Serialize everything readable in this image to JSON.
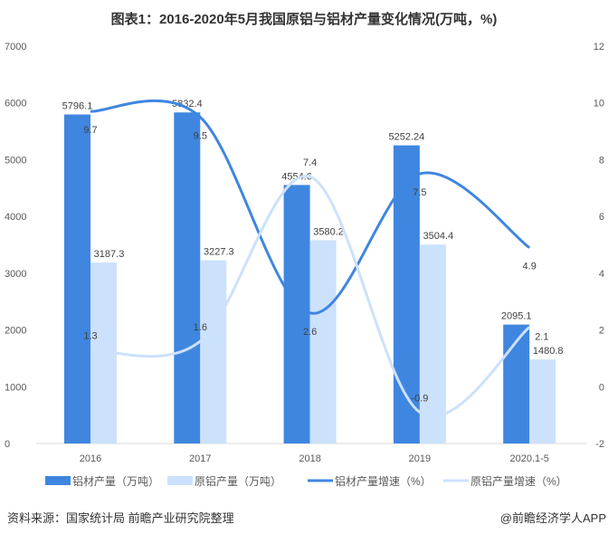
{
  "title": "图表1：2016-2020年5月我国原铝与铝材产量变化情况(万吨，%)",
  "source": "资料来源：国家统计局 前瞻产业研究院整理",
  "credit": "@前瞻经济学人APP",
  "chart_data": {
    "type": "bar+line",
    "categories": [
      "2016",
      "2017",
      "2018",
      "2019",
      "2020.1-5"
    ],
    "y_left": {
      "ylim": [
        0,
        7000
      ],
      "ticks": [
        0,
        1000,
        2000,
        3000,
        4000,
        5000,
        6000,
        7000
      ]
    },
    "y_right": {
      "ylim": [
        -2,
        12
      ],
      "ticks": [
        -2,
        0,
        2,
        4,
        6,
        8,
        10,
        12
      ]
    },
    "grid": false,
    "legend_position": "bottom",
    "series": [
      {
        "name": "铝材产量（万吨）",
        "type": "bar",
        "axis": "left",
        "color": "#3f86e0",
        "values": [
          5796.1,
          5832.4,
          4554.6,
          5252.24,
          2095.1
        ],
        "labels": [
          "5796.1",
          "5832.4",
          "4554.6",
          "5252.24",
          "2095.1"
        ]
      },
      {
        "name": "原铝产量（万吨）",
        "type": "bar",
        "axis": "left",
        "color": "#cce1fb",
        "values": [
          3187.3,
          3227.3,
          3580.2,
          3504.4,
          1480.8
        ],
        "labels": [
          "3187.3",
          "3227.3",
          "3580.2",
          "3504.4",
          "1480.8"
        ]
      },
      {
        "name": "铝材产量增速（%）",
        "type": "line",
        "axis": "right",
        "color": "#3f86e0",
        "values": [
          9.7,
          9.5,
          2.6,
          7.5,
          4.9
        ],
        "labels": [
          "9.7",
          "9.5",
          "2.6",
          "7.5",
          "4.9"
        ]
      },
      {
        "name": "原铝产量增速（%）",
        "type": "line",
        "axis": "right",
        "color": "#cce1fb",
        "values": [
          1.3,
          1.6,
          7.4,
          -0.9,
          2.1
        ],
        "labels": [
          "1.3",
          "1.6",
          "7.4",
          "-0.9",
          "2.1"
        ]
      }
    ]
  }
}
